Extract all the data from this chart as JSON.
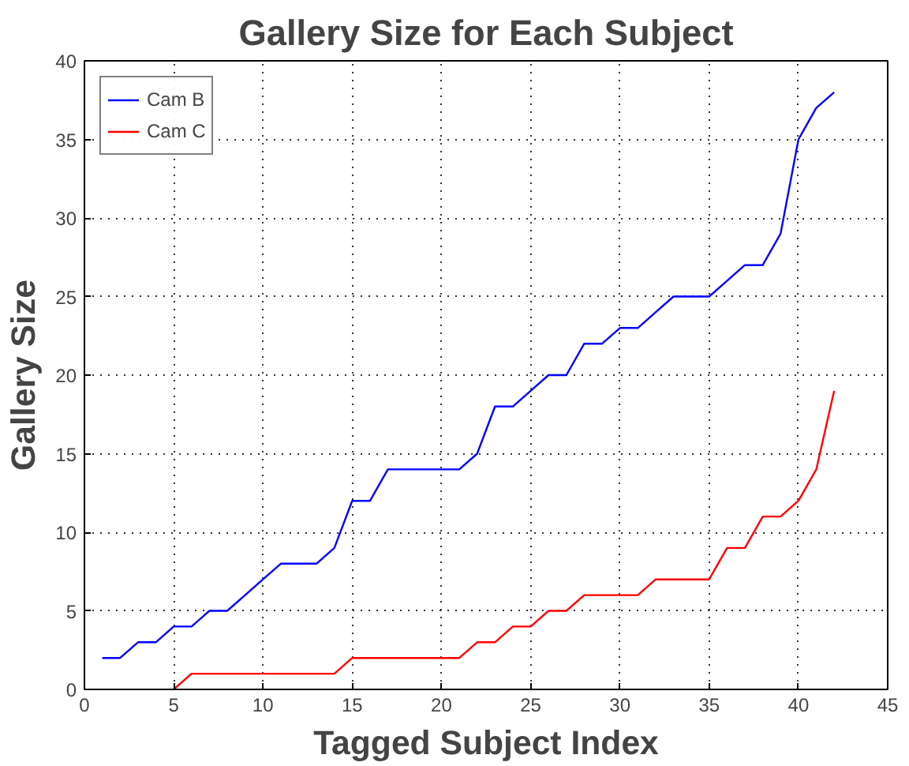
{
  "chart_data": {
    "type": "line",
    "title": "Gallery Size for Each Subject",
    "xlabel": "Tagged Subject Index",
    "ylabel": "Gallery Size",
    "xlim": [
      0,
      45
    ],
    "xticks": [
      0,
      5,
      10,
      15,
      20,
      25,
      30,
      35,
      40,
      45
    ],
    "ylim": [
      0,
      40
    ],
    "yticks": [
      0,
      5,
      10,
      15,
      20,
      25,
      30,
      35,
      40
    ],
    "grid": true,
    "legend": "top left",
    "series": [
      {
        "name": "Cam B",
        "color": "#0000ff",
        "x": [
          1,
          2,
          3,
          4,
          5,
          6,
          7,
          8,
          9,
          10,
          11,
          12,
          13,
          14,
          15,
          16,
          17,
          18,
          19,
          20,
          21,
          22,
          23,
          24,
          25,
          26,
          27,
          28,
          29,
          30,
          31,
          32,
          33,
          34,
          35,
          36,
          37,
          38,
          39,
          40,
          41,
          42
        ],
        "values": [
          2,
          2,
          3,
          3,
          4,
          4,
          5,
          5,
          6,
          7,
          8,
          8,
          8,
          9,
          12,
          12,
          14,
          14,
          14,
          14,
          14,
          15,
          18,
          18,
          19,
          20,
          20,
          22,
          22,
          23,
          23,
          24,
          25,
          25,
          25,
          26,
          27,
          27,
          29,
          35,
          37,
          38
        ]
      },
      {
        "name": "Cam C",
        "color": "#ff0000",
        "x": [
          5,
          6,
          7,
          8,
          9,
          10,
          11,
          12,
          13,
          14,
          15,
          16,
          17,
          18,
          19,
          20,
          21,
          22,
          23,
          24,
          25,
          26,
          27,
          28,
          29,
          30,
          31,
          32,
          33,
          34,
          35,
          36,
          37,
          38,
          39,
          40,
          41,
          42
        ],
        "values": [
          0,
          1,
          1,
          1,
          1,
          1,
          1,
          1,
          1,
          1,
          2,
          2,
          2,
          2,
          2,
          2,
          2,
          3,
          3,
          4,
          4,
          5,
          5,
          6,
          6,
          6,
          6,
          7,
          7,
          7,
          7,
          9,
          9,
          11,
          11,
          12,
          14,
          19
        ]
      }
    ]
  }
}
